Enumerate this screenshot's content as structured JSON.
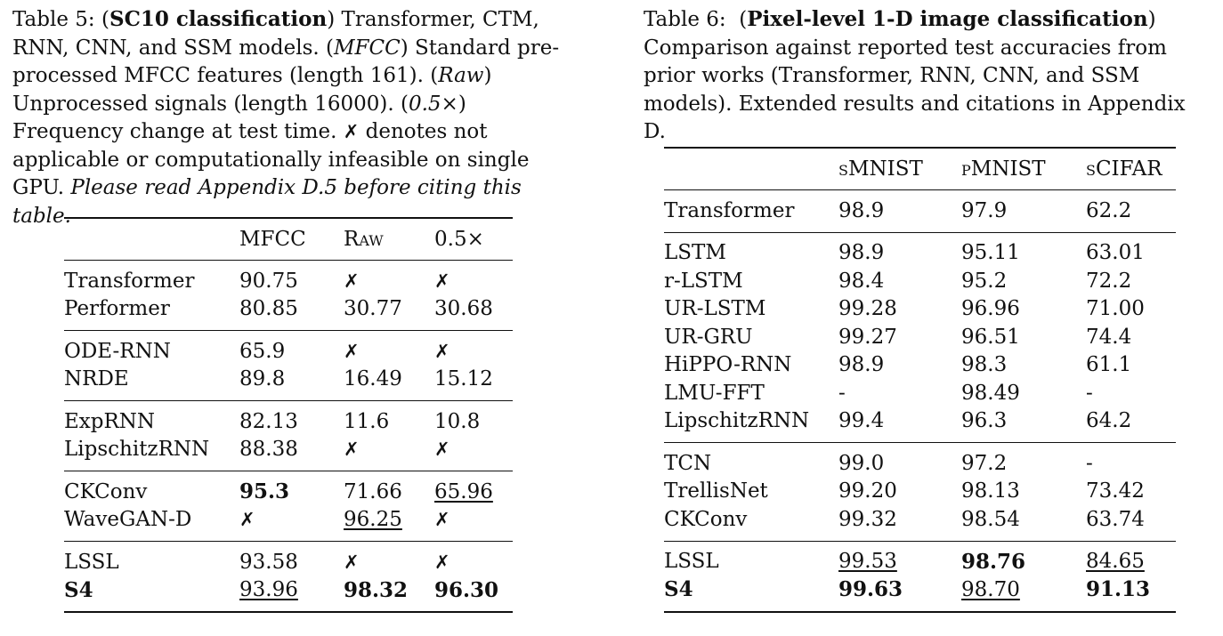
{
  "table5": {
    "caption_label": "Table 5:",
    "caption_bold": "SC10 classification",
    "caption_p1": ") Transformer, CTM, RNN, CNN, and SSM models. (",
    "caption_mfcc": "MFCC",
    "caption_p2": ") Standard pre-processed MFCC features (length 161). (",
    "caption_raw": "Raw",
    "caption_p3": ") Unprocessed signals (length 16000). (",
    "caption_half": "0.5×",
    "caption_p4": ") Frequency change at test time. ",
    "caption_x": "✗",
    "caption_p5": " denotes not applicable or computationally infeasible on single GPU. ",
    "caption_italic": "Please read Appendix D.5 before citing this table.",
    "headers": [
      "",
      "MFCC",
      "Raw",
      "0.5×"
    ],
    "groups": [
      [
        {
          "model": "Transformer",
          "cells": [
            {
              "v": "90.75"
            },
            {
              "v": "✗"
            },
            {
              "v": "✗"
            }
          ]
        },
        {
          "model": "Performer",
          "cells": [
            {
              "v": "80.85"
            },
            {
              "v": "30.77"
            },
            {
              "v": "30.68"
            }
          ]
        }
      ],
      [
        {
          "model": "ODE-RNN",
          "cells": [
            {
              "v": "65.9"
            },
            {
              "v": "✗"
            },
            {
              "v": "✗"
            }
          ]
        },
        {
          "model": "NRDE",
          "cells": [
            {
              "v": "89.8"
            },
            {
              "v": "16.49"
            },
            {
              "v": "15.12"
            }
          ]
        }
      ],
      [
        {
          "model": "ExpRNN",
          "cells": [
            {
              "v": "82.13"
            },
            {
              "v": "11.6"
            },
            {
              "v": "10.8"
            }
          ]
        },
        {
          "model": "LipschitzRNN",
          "cells": [
            {
              "v": "88.38"
            },
            {
              "v": "✗"
            },
            {
              "v": "✗"
            }
          ]
        }
      ],
      [
        {
          "model": "CKConv",
          "cells": [
            {
              "v": "95.3",
              "bold": true
            },
            {
              "v": "71.66"
            },
            {
              "v": "65.96",
              "underline": true
            }
          ]
        },
        {
          "model": "WaveGAN-D",
          "cells": [
            {
              "v": "✗"
            },
            {
              "v": "96.25",
              "underline": true
            },
            {
              "v": "✗"
            }
          ]
        }
      ],
      [
        {
          "model": "LSSL",
          "cells": [
            {
              "v": "93.58"
            },
            {
              "v": "✗"
            },
            {
              "v": "✗"
            }
          ]
        },
        {
          "model": "S4",
          "model_bold": true,
          "cells": [
            {
              "v": "93.96",
              "underline": true
            },
            {
              "v": "98.32",
              "bold": true
            },
            {
              "v": "96.30",
              "bold": true
            }
          ]
        }
      ]
    ]
  },
  "table6": {
    "caption_label": "Table 6:",
    "caption_bold": "Pixel-level 1-D image classification",
    "caption_rest": ") Comparison against reported test accuracies from prior works (Transformer, RNN, CNN, and SSM models). Extended results and citations in Appendix D.",
    "headers": [
      "",
      "sMNIST",
      "pMNIST",
      "sCIFAR"
    ],
    "groups": [
      [
        {
          "model": "Transformer",
          "cells": [
            {
              "v": "98.9"
            },
            {
              "v": "97.9"
            },
            {
              "v": "62.2"
            }
          ]
        }
      ],
      [
        {
          "model": "LSTM",
          "cells": [
            {
              "v": "98.9"
            },
            {
              "v": "95.11"
            },
            {
              "v": "63.01"
            }
          ]
        },
        {
          "model": "r-LSTM",
          "cells": [
            {
              "v": "98.4"
            },
            {
              "v": "95.2"
            },
            {
              "v": "72.2"
            }
          ]
        },
        {
          "model": "UR-LSTM",
          "cells": [
            {
              "v": "99.28"
            },
            {
              "v": "96.96"
            },
            {
              "v": "71.00"
            }
          ]
        },
        {
          "model": "UR-GRU",
          "cells": [
            {
              "v": "99.27"
            },
            {
              "v": "96.51"
            },
            {
              "v": "74.4"
            }
          ]
        },
        {
          "model": "HiPPO-RNN",
          "cells": [
            {
              "v": "98.9"
            },
            {
              "v": "98.3"
            },
            {
              "v": "61.1"
            }
          ]
        },
        {
          "model": "LMU-FFT",
          "cells": [
            {
              "v": "-"
            },
            {
              "v": "98.49"
            },
            {
              "v": "-"
            }
          ]
        },
        {
          "model": "LipschitzRNN",
          "cells": [
            {
              "v": "99.4"
            },
            {
              "v": "96.3"
            },
            {
              "v": "64.2"
            }
          ]
        }
      ],
      [
        {
          "model": "TCN",
          "cells": [
            {
              "v": "99.0"
            },
            {
              "v": "97.2"
            },
            {
              "v": "-"
            }
          ]
        },
        {
          "model": "TrellisNet",
          "cells": [
            {
              "v": "99.20"
            },
            {
              "v": "98.13"
            },
            {
              "v": "73.42"
            }
          ]
        },
        {
          "model": "CKConv",
          "cells": [
            {
              "v": "99.32"
            },
            {
              "v": "98.54"
            },
            {
              "v": "63.74"
            }
          ]
        }
      ],
      [
        {
          "model": "LSSL",
          "cells": [
            {
              "v": "99.53",
              "underline": true
            },
            {
              "v": "98.76",
              "bold": true
            },
            {
              "v": "84.65",
              "underline": true
            }
          ]
        },
        {
          "model": "S4",
          "model_bold": true,
          "cells": [
            {
              "v": "99.63",
              "bold": true
            },
            {
              "v": "98.70",
              "underline": true
            },
            {
              "v": "91.13",
              "bold": true
            }
          ]
        }
      ]
    ]
  }
}
